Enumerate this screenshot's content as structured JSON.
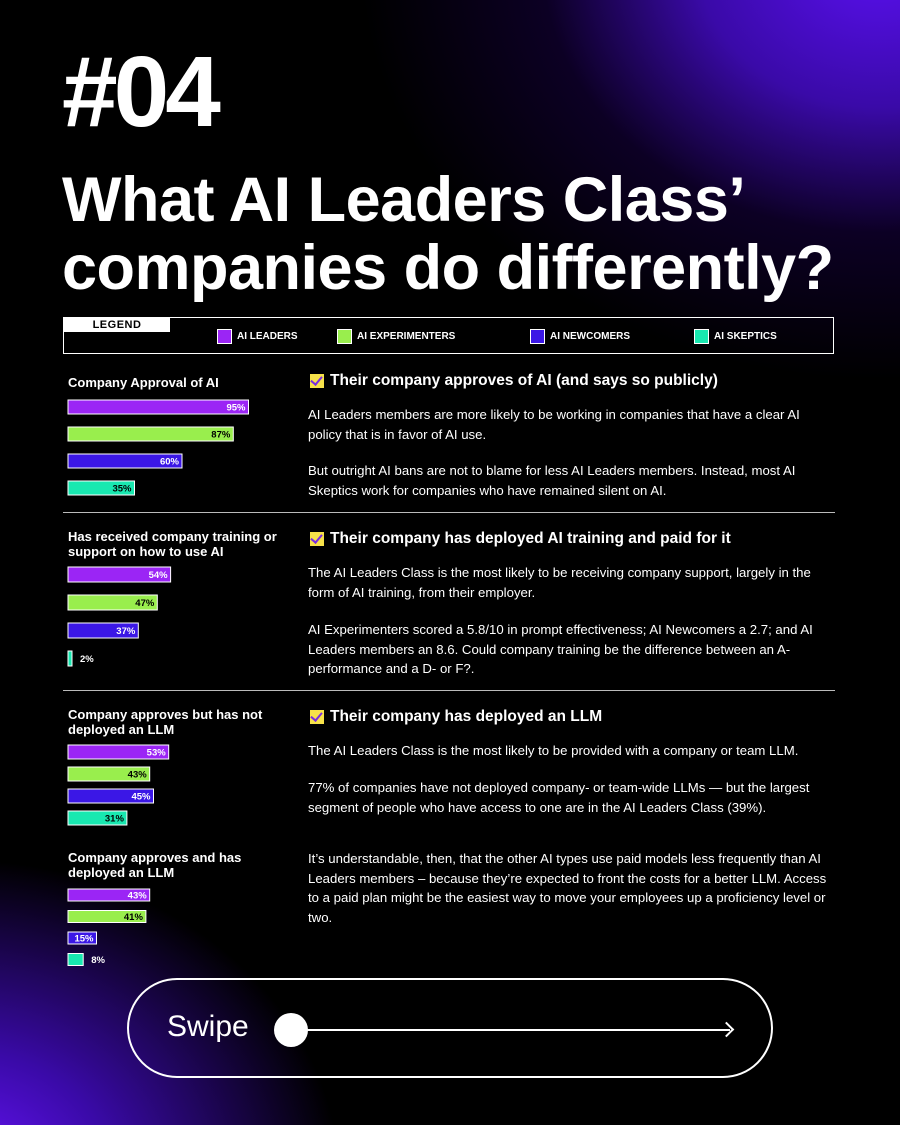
{
  "header": {
    "number": "#04",
    "title": "What AI Leaders Class’ companies do differently?"
  },
  "legend": {
    "label": "LEGEND",
    "items": [
      {
        "label": "AI LEADERS",
        "color": "#9b25f5"
      },
      {
        "label": "AI EXPERIMENTERS",
        "color": "#99ee4d"
      },
      {
        "label": "AI NEWCOMERS",
        "color": "#3b17e6"
      },
      {
        "label": "AI SKEPTICS",
        "color": "#18e8b0"
      }
    ]
  },
  "chart_data": [
    {
      "type": "bar",
      "title": "Company Approval of AI",
      "categories": [
        "AI LEADERS",
        "AI EXPERIMENTERS",
        "AI NEWCOMERS",
        "AI SKEPTICS"
      ],
      "values": [
        95,
        87,
        60,
        35
      ],
      "labels": [
        "95%",
        "87%",
        "60%",
        "35%"
      ],
      "xlim": [
        0,
        100
      ]
    },
    {
      "type": "bar",
      "title": "Has received company training or support on how to use AI",
      "categories": [
        "AI LEADERS",
        "AI EXPERIMENTERS",
        "AI NEWCOMERS",
        "AI SKEPTICS"
      ],
      "values": [
        54,
        47,
        37,
        2
      ],
      "labels": [
        "54%",
        "47%",
        "37%",
        "2%"
      ],
      "xlim": [
        0,
        100
      ]
    },
    {
      "type": "bar",
      "title": "Company approves but has not deployed an LLM",
      "categories": [
        "AI LEADERS",
        "AI EXPERIMENTERS",
        "AI NEWCOMERS",
        "AI SKEPTICS"
      ],
      "values": [
        53,
        43,
        45,
        31
      ],
      "labels": [
        "53%",
        "43%",
        "45%",
        "31%"
      ],
      "xlim": [
        0,
        100
      ]
    },
    {
      "type": "bar",
      "title": "Company approves and has deployed an LLM",
      "categories": [
        "AI LEADERS",
        "AI EXPERIMENTERS",
        "AI NEWCOMERS",
        "AI SKEPTICS"
      ],
      "values": [
        43,
        41,
        15,
        8
      ],
      "labels": [
        "43%",
        "41%",
        "15%",
        "8%"
      ],
      "xlim": [
        0,
        100
      ]
    }
  ],
  "sections": [
    {
      "heading": "Their company approves of AI (and says so publicly)",
      "paragraphs": [
        "AI Leaders members are more likely to be working in companies that have a clear AI policy that is in favor of AI use.",
        "But outright AI bans are not to blame for less AI Leaders members. Instead, most AI Skeptics work for companies who have remained silent on AI."
      ]
    },
    {
      "heading": "Their company has deployed AI training and paid for it",
      "paragraphs": [
        "The AI Leaders Class is the most likely to be receiving company support, largely in the form of AI training, from their employer.",
        "AI Experimenters scored a 5.8/10 in prompt effectiveness; AI Newcomers a 2.7; and AI Leaders members an 8.6. Could company training be the difference between an A- performance and a D- or F?."
      ]
    },
    {
      "heading": "Their company has deployed an LLM",
      "paragraphs": [
        "The AI Leaders Class is the most likely to be provided with a company or team LLM.",
        "77% of companies have not deployed company- or team-wide LLMs — but the largest segment of people who have access to one are in the AI Leaders Class (39%).",
        "It’s understandable, then, that the other AI types use paid models less frequently than AI Leaders members – because they’re expected to front the costs for a better LLM. Access to a paid plan might be the easiest way to move your employees up a proficiency level or two."
      ]
    }
  ],
  "swipe": {
    "label": "Swipe"
  }
}
